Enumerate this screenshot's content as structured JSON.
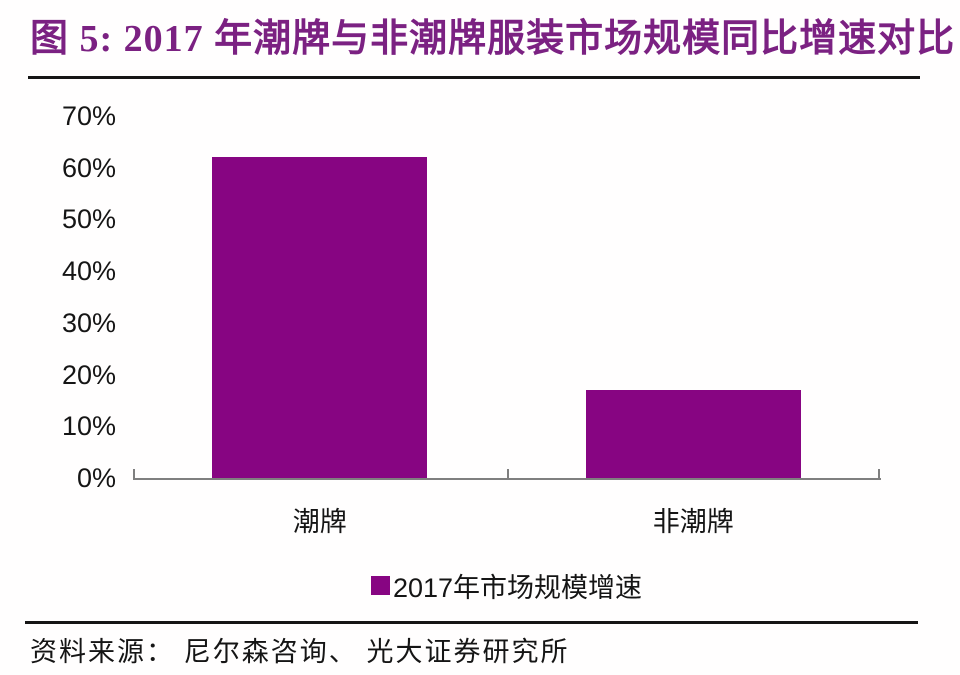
{
  "title": {
    "text": "图 5: 2017 年潮牌与非潮牌服装市场规模同比增速对比"
  },
  "chart_data": {
    "type": "bar",
    "categories": [
      "潮牌",
      "非潮牌"
    ],
    "values": [
      62,
      17
    ],
    "series_name": "2017年市场规模增速",
    "unit": "%",
    "ylim": [
      0,
      70
    ],
    "ytick_step": 10,
    "ytick_labels": [
      "0%",
      "10%",
      "20%",
      "30%",
      "40%",
      "50%",
      "60%",
      "70%"
    ],
    "grid": false,
    "legend_position": "bottom-center",
    "bar_color": "#870582",
    "axis_color": "#7f7f7f"
  },
  "legend": {
    "label": "2017年市场规模增速",
    "swatch_color": "#870582"
  },
  "source": {
    "text": "资料来源： 尼尔森咨询、 光大证券研究所"
  },
  "colors": {
    "title": "#7b2182",
    "text": "#151515",
    "rule": "#151515"
  }
}
